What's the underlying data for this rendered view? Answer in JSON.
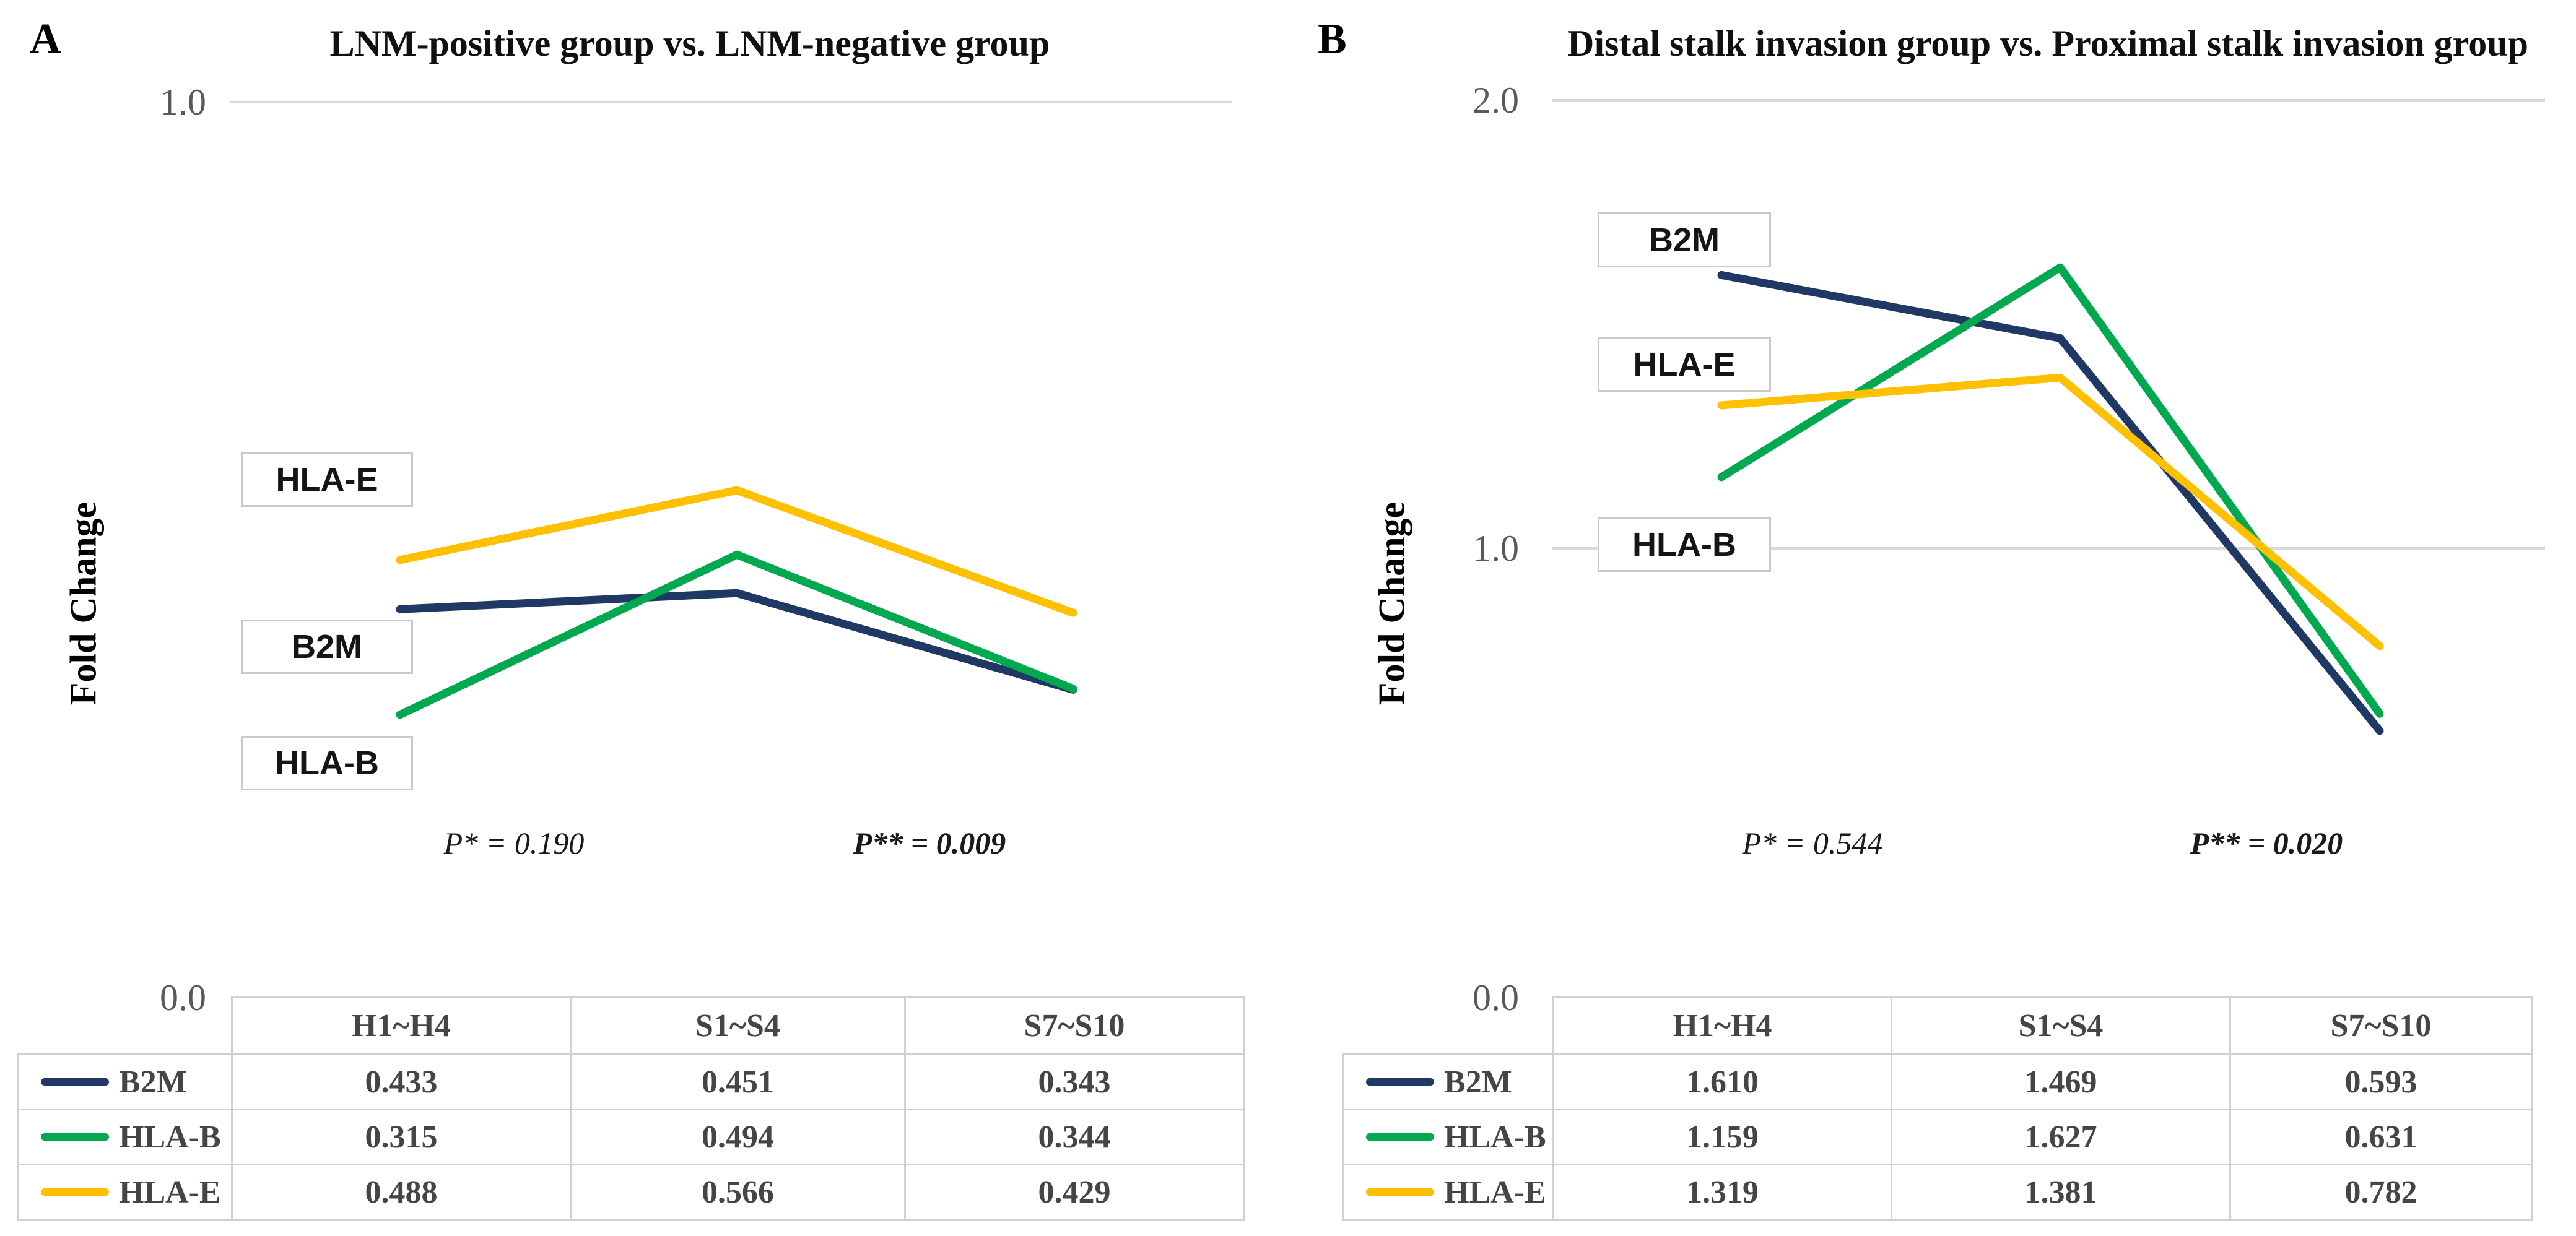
{
  "chart_data": [
    {
      "type": "line",
      "panel_label": "A",
      "title": "LNM-positive group vs. LNM-negative group",
      "ylabel": "Fold Change",
      "ylim": [
        0.0,
        1.0
      ],
      "ytick_labels": [
        "1.0",
        "0.0"
      ],
      "gridline_values": [
        1.0
      ],
      "grid": "horizontal-gridline-at-top-tick-only",
      "categories": [
        "H1~H4",
        "S1~S4",
        "S7~S10"
      ],
      "series": [
        {
          "name": "B2M",
          "color": "#1F3864",
          "values": [
            0.433,
            0.451,
            0.343
          ]
        },
        {
          "name": "HLA-B",
          "color": "#00A94F",
          "values": [
            0.315,
            0.494,
            0.344
          ]
        },
        {
          "name": "HLA-E",
          "color": "#FFC000",
          "values": [
            0.488,
            0.566,
            0.429
          ]
        }
      ],
      "label_boxes": [
        "HLA-E",
        "B2M",
        "HLA-B"
      ],
      "annotations": [
        {
          "text": "P* = 0.190",
          "emphasis": "italic"
        },
        {
          "text": "P** = 0.009",
          "emphasis": "bold-italic"
        }
      ],
      "legend_position": "table-left-column"
    },
    {
      "type": "line",
      "panel_label": "B",
      "title": "Distal stalk invasion group vs. Proximal stalk invasion group",
      "ylabel": "Fold Change",
      "ylim": [
        0.0,
        2.0
      ],
      "ytick_labels": [
        "2.0",
        "1.0",
        "0.0"
      ],
      "gridline_values": [
        2.0,
        1.0
      ],
      "grid": "horizontal-gridlines-at-labeled-ticks",
      "categories": [
        "H1~H4",
        "S1~S4",
        "S7~S10"
      ],
      "series": [
        {
          "name": "B2M",
          "color": "#1F3864",
          "values": [
            1.61,
            1.469,
            0.593
          ]
        },
        {
          "name": "HLA-B",
          "color": "#00A94F",
          "values": [
            1.159,
            1.627,
            0.631
          ]
        },
        {
          "name": "HLA-E",
          "color": "#FFC000",
          "values": [
            1.319,
            1.381,
            0.782
          ]
        }
      ],
      "label_boxes": [
        "B2M",
        "HLA-E",
        "HLA-B"
      ],
      "annotations": [
        {
          "text": "P* = 0.544",
          "emphasis": "italic"
        },
        {
          "text": "P** = 0.020",
          "emphasis": "bold-italic"
        }
      ],
      "legend_position": "table-left-column"
    }
  ],
  "style": {
    "gridline_color": "#d9d9d9",
    "table_border_color": "#d0d0d0",
    "tick_color": "#595959"
  }
}
